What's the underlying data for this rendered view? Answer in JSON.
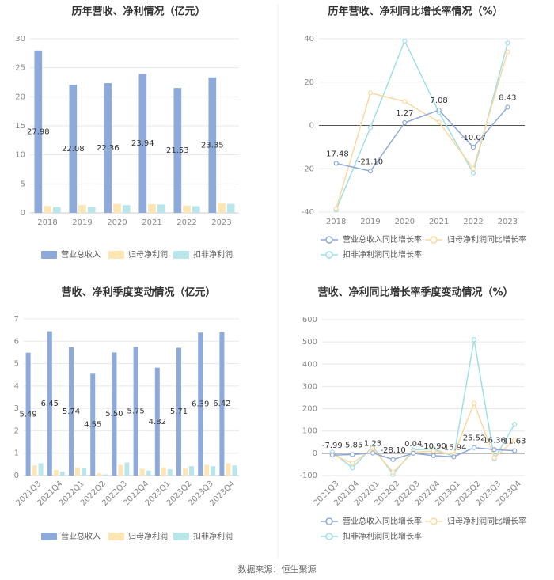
{
  "source": "数据来源：恒生聚源",
  "colors": {
    "revenue": "#8eaadb",
    "net_profit": "#fde5b4",
    "deducted_profit": "#b8e6ea",
    "line_revenue": "#8eaadb",
    "line_net": "#fcd8a0",
    "line_deducted": "#9edfe6",
    "grid": "#e8e8e8",
    "divider": "#eeeeee"
  },
  "chart_data": [
    {
      "id": "annual_bar",
      "type": "bar",
      "title": "历年营收、净利情况（亿元）",
      "categories": [
        "2018",
        "2019",
        "2020",
        "2021",
        "2022",
        "2023"
      ],
      "ylim": [
        0,
        30
      ],
      "yticks": [
        0,
        5,
        10,
        15,
        20,
        25,
        30
      ],
      "series": [
        {
          "name": "营业总收入",
          "values": [
            27.98,
            22.08,
            22.36,
            23.94,
            21.53,
            23.35
          ],
          "color_key": "revenue",
          "show_labels": true
        },
        {
          "name": "归母净利润",
          "values": [
            1.2,
            1.35,
            1.55,
            1.5,
            1.25,
            1.7
          ],
          "color_key": "net_profit",
          "show_labels": false
        },
        {
          "name": "扣非净利润",
          "values": [
            1.0,
            1.0,
            1.35,
            1.45,
            1.15,
            1.55
          ],
          "color_key": "deducted_profit",
          "show_labels": false
        }
      ],
      "labels": [
        "27.98",
        "22.08",
        "22.36",
        "23.94",
        "21.53",
        "23.35"
      ]
    },
    {
      "id": "annual_line",
      "type": "line",
      "title": "历年营收、净利同比增长率情况（%）",
      "categories": [
        "2018",
        "2019",
        "2020",
        "2021",
        "2022",
        "2023"
      ],
      "ylim": [
        -40,
        40
      ],
      "yticks": [
        -40,
        -20,
        0,
        20,
        40
      ],
      "series": [
        {
          "name": "营业总收入同比增长率",
          "values": [
            -17.48,
            -21.1,
            1.27,
            7.08,
            -10.07,
            8.43
          ],
          "color_key": "line_revenue",
          "show_labels": true
        },
        {
          "name": "归母净利润同比增长率",
          "values": [
            -38.5,
            15,
            11,
            1.5,
            -20,
            34
          ],
          "color_key": "line_net",
          "show_labels": false
        },
        {
          "name": "扣非净利润同比增长率",
          "values": [
            -39,
            -1,
            39,
            6,
            -22,
            38
          ],
          "color_key": "line_deducted",
          "show_labels": false
        }
      ],
      "labels": [
        "-17.48",
        "-21.10",
        "1.27",
        "7.08",
        "-10.07",
        "8.43"
      ]
    },
    {
      "id": "quarterly_bar",
      "type": "bar",
      "title": "营收、净利季度变动情况（亿元）",
      "categories": [
        "2021Q3",
        "2021Q4",
        "2022Q1",
        "2022Q2",
        "2022Q3",
        "2022Q4",
        "2023Q1",
        "2023Q2",
        "2023Q3",
        "2023Q4"
      ],
      "ylim": [
        0,
        7
      ],
      "yticks": [
        0,
        1,
        2,
        3,
        4,
        5,
        6,
        7
      ],
      "series": [
        {
          "name": "营业总收入",
          "values": [
            5.49,
            6.45,
            5.74,
            4.55,
            5.5,
            5.75,
            4.82,
            5.71,
            6.39,
            6.42
          ],
          "color_key": "revenue",
          "show_labels": true
        },
        {
          "name": "归母净利润",
          "values": [
            0.45,
            0.25,
            0.35,
            0.1,
            0.48,
            0.3,
            0.35,
            0.3,
            0.48,
            0.55
          ],
          "color_key": "net_profit",
          "show_labels": false
        },
        {
          "name": "扣非净利润",
          "values": [
            0.55,
            0.18,
            0.32,
            0.05,
            0.58,
            0.22,
            0.28,
            0.42,
            0.42,
            0.45
          ],
          "color_key": "deducted_profit",
          "show_labels": false
        }
      ],
      "labels": [
        "5.49",
        "6.45",
        "5.74",
        "4.55",
        "5.50",
        "5.75",
        "4.82",
        "5.71",
        "6.39",
        "6.42"
      ]
    },
    {
      "id": "quarterly_line",
      "type": "line",
      "title": "营收、净利同比增长率季度变动情况（%）",
      "categories": [
        "2021Q3",
        "2021Q4",
        "2022Q1",
        "2022Q2",
        "2022Q3",
        "2022Q4",
        "2023Q1",
        "2023Q2",
        "2023Q3",
        "2023Q4"
      ],
      "ylim": [
        -100,
        600
      ],
      "yticks": [
        -100,
        0,
        100,
        200,
        300,
        400,
        500,
        600
      ],
      "series": [
        {
          "name": "营业总收入同比增长率",
          "values": [
            -7.99,
            -5.85,
            1.23,
            -28.1,
            0.04,
            -10.9,
            -15.94,
            25.52,
            16.36,
            11.63
          ],
          "color_key": "line_revenue",
          "show_labels": true
        },
        {
          "name": "归母净利润同比增长率",
          "values": [
            -5,
            -45,
            22,
            -85,
            5,
            10,
            -5,
            225,
            -20,
            60
          ],
          "color_key": "line_net",
          "show_labels": false
        },
        {
          "name": "扣非净利润同比增长率",
          "values": [
            5,
            -65,
            30,
            -95,
            15,
            20,
            -15,
            510,
            -25,
            130
          ],
          "color_key": "line_deducted",
          "show_labels": false
        }
      ],
      "labels": [
        "-7.99",
        "-5.85",
        "1.23",
        "-28.10",
        "0.04",
        "-10.90",
        "-15.94",
        "25.52",
        "16.36",
        "11.63"
      ]
    }
  ]
}
